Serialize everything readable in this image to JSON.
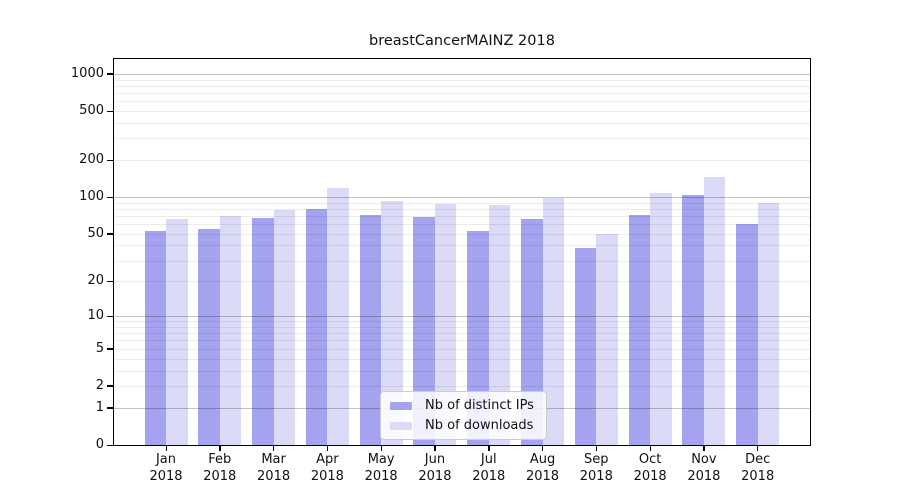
{
  "chart_data": {
    "type": "bar",
    "title": "breastCancerMAINZ 2018",
    "categories": [
      "Jan",
      "Feb",
      "Mar",
      "Apr",
      "May",
      "Jun",
      "Jul",
      "Aug",
      "Sep",
      "Oct",
      "Nov",
      "Dec"
    ],
    "x_tick_year": "2018",
    "series": [
      {
        "name": "Nb of distinct IPs",
        "color": "#a3a3ef",
        "values": [
          53,
          55,
          68,
          80,
          71,
          69,
          53,
          66,
          38,
          71,
          104,
          60
        ]
      },
      {
        "name": "Nb of downloads",
        "color": "#dbdbf8",
        "values": [
          66,
          70,
          78,
          119,
          93,
          87,
          86,
          98,
          50,
          108,
          145,
          89
        ]
      }
    ],
    "y_ticks": [
      0,
      1,
      2,
      5,
      10,
      20,
      50,
      100,
      200,
      500,
      1000
    ],
    "y_scale": "log10(y+1)",
    "ylim": [
      0,
      1380
    ],
    "xlabel": "",
    "ylabel": "",
    "grid": "horizontal major and minor gridlines",
    "legend_position": "lower center"
  }
}
